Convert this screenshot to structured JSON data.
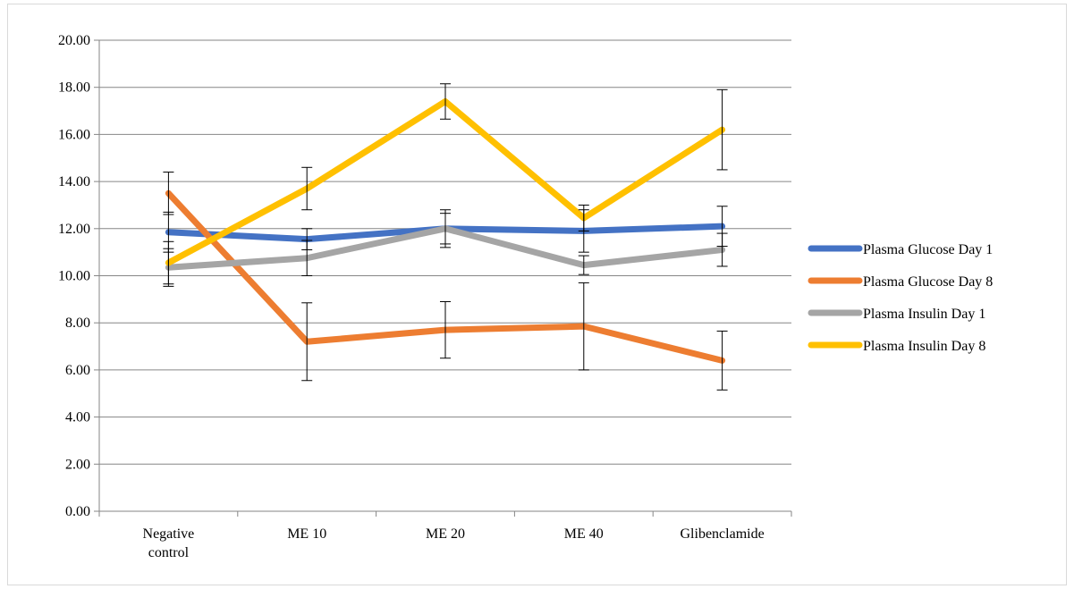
{
  "chart_data": {
    "type": "line",
    "title": "",
    "xlabel": "",
    "ylabel": "",
    "categories": [
      [
        "Negative",
        "control"
      ],
      [
        "ME 10"
      ],
      [
        "ME 20"
      ],
      [
        "ME 40"
      ],
      [
        "Glibenclamide"
      ]
    ],
    "ylim": [
      0,
      20
    ],
    "ytick_step": 2,
    "ytick_labels": [
      "0.00",
      "2.00",
      "4.00",
      "6.00",
      "8.00",
      "10.00",
      "12.00",
      "14.00",
      "16.00",
      "18.00",
      "20.00"
    ],
    "grid": "horizontal",
    "legend_position": "right",
    "series": [
      {
        "name": "Plasma Glucose Day 1",
        "color": "#4472C4",
        "values": [
          11.85,
          11.55,
          12.0,
          11.9,
          12.1
        ],
        "errors": [
          0.85,
          0.45,
          0.8,
          0.9,
          0.85
        ]
      },
      {
        "name": "Plasma Glucose Day 8",
        "color": "#ED7D31",
        "values": [
          13.5,
          7.2,
          7.7,
          7.85,
          6.4
        ],
        "errors": [
          0.9,
          1.65,
          1.2,
          1.85,
          1.25
        ]
      },
      {
        "name": "Plasma Insulin Day 1",
        "color": "#A5A5A5",
        "values": [
          10.35,
          10.75,
          12.0,
          10.45,
          11.1
        ],
        "errors": [
          0.8,
          0.75,
          0.65,
          0.4,
          0.7
        ]
      },
      {
        "name": "Plasma Insulin Day 8",
        "color": "#FFC000",
        "values": [
          10.55,
          13.7,
          17.4,
          12.45,
          16.2
        ],
        "errors": [
          0.9,
          0.9,
          0.75,
          0.55,
          1.7
        ]
      }
    ]
  }
}
